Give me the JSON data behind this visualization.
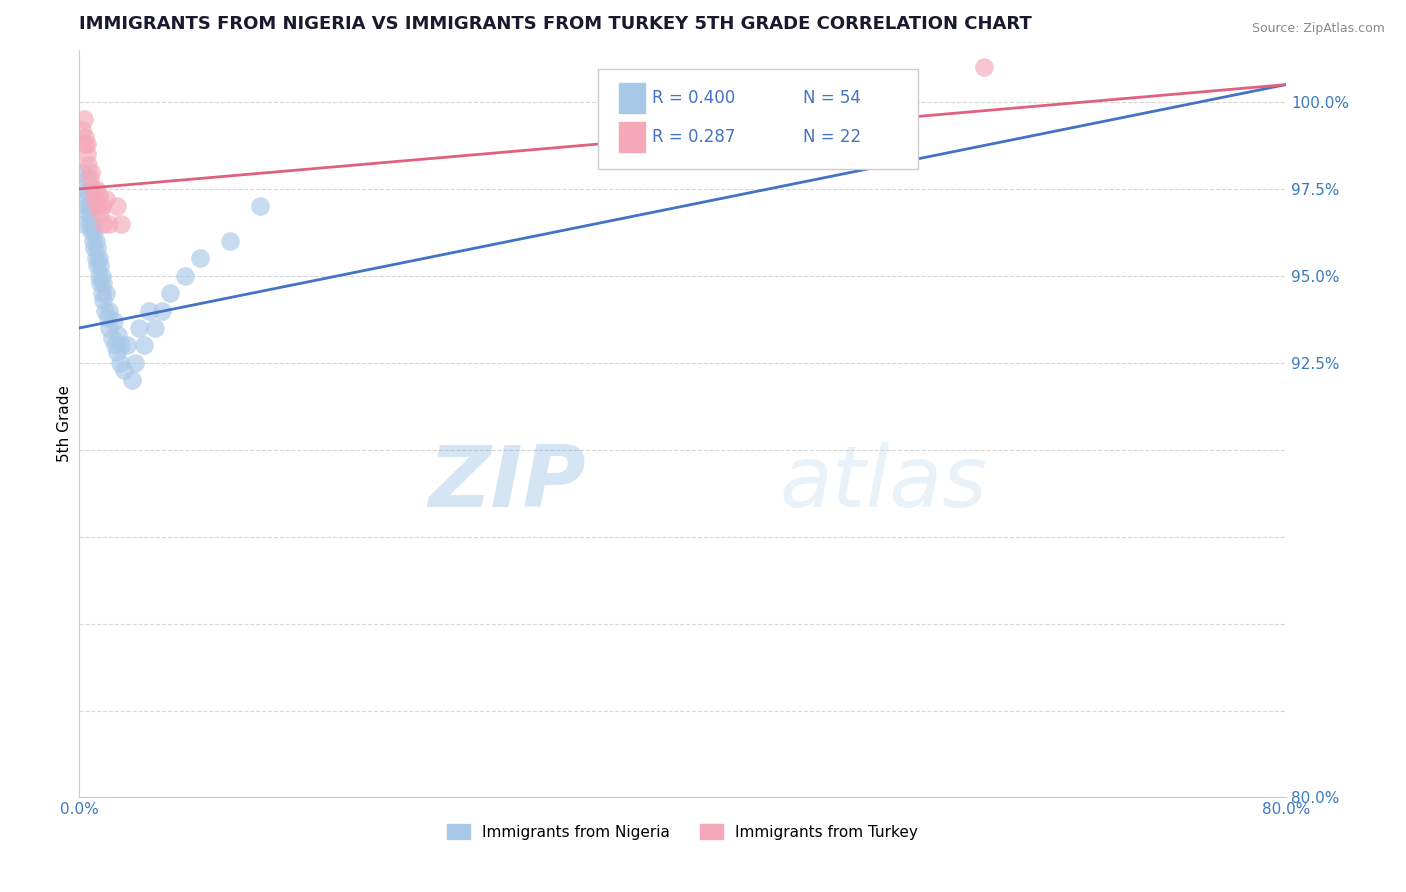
{
  "title": "IMMIGRANTS FROM NIGERIA VS IMMIGRANTS FROM TURKEY 5TH GRADE CORRELATION CHART",
  "source": "Source: ZipAtlas.com",
  "ylabel": "5th Grade",
  "xlim": [
    0.0,
    0.8
  ],
  "ylim": [
    80.0,
    101.5
  ],
  "yticks": [
    80.0,
    82.5,
    85.0,
    87.5,
    90.0,
    92.5,
    95.0,
    97.5,
    100.0
  ],
  "ytick_labels": [
    "80.0%",
    "",
    "",
    "",
    "",
    "92.5%",
    "95.0%",
    "97.5%",
    "100.0%"
  ],
  "xticks": [
    0.0,
    0.1,
    0.2,
    0.3,
    0.4,
    0.5,
    0.6,
    0.7,
    0.8
  ],
  "xtick_labels": [
    "0.0%",
    "",
    "",
    "",
    "",
    "",
    "",
    "",
    "80.0%"
  ],
  "nigeria_color": "#a8c8e8",
  "turkey_color": "#f4a8b8",
  "nigeria_line_color": "#4472c4",
  "turkey_line_color": "#e06080",
  "legend_R_nigeria": "0.400",
  "legend_N_nigeria": "54",
  "legend_R_turkey": "0.287",
  "legend_N_turkey": "22",
  "nigeria_x": [
    0.001,
    0.002,
    0.003,
    0.004,
    0.005,
    0.005,
    0.006,
    0.006,
    0.007,
    0.007,
    0.008,
    0.008,
    0.009,
    0.009,
    0.01,
    0.01,
    0.011,
    0.011,
    0.012,
    0.012,
    0.013,
    0.013,
    0.014,
    0.014,
    0.015,
    0.015,
    0.016,
    0.016,
    0.017,
    0.018,
    0.019,
    0.02,
    0.02,
    0.022,
    0.023,
    0.024,
    0.025,
    0.026,
    0.027,
    0.028,
    0.03,
    0.032,
    0.035,
    0.037,
    0.04,
    0.043,
    0.046,
    0.05,
    0.055,
    0.06,
    0.07,
    0.08,
    0.1,
    0.12
  ],
  "nigeria_y": [
    97.5,
    98.0,
    96.5,
    97.2,
    97.0,
    97.8,
    96.8,
    97.4,
    96.5,
    97.0,
    96.3,
    96.8,
    96.0,
    96.5,
    95.8,
    96.3,
    95.5,
    96.0,
    95.3,
    95.8,
    95.0,
    95.5,
    94.8,
    95.3,
    94.5,
    95.0,
    94.3,
    94.8,
    94.0,
    94.5,
    93.8,
    93.5,
    94.0,
    93.2,
    93.7,
    93.0,
    92.8,
    93.3,
    92.5,
    93.0,
    92.3,
    93.0,
    92.0,
    92.5,
    93.5,
    93.0,
    94.0,
    93.5,
    94.0,
    94.5,
    95.0,
    95.5,
    96.0,
    97.0
  ],
  "nigeria_line_x": [
    0.0,
    0.8
  ],
  "nigeria_line_y": [
    93.5,
    100.5
  ],
  "turkey_x": [
    0.002,
    0.003,
    0.004,
    0.004,
    0.005,
    0.005,
    0.006,
    0.007,
    0.008,
    0.009,
    0.01,
    0.011,
    0.012,
    0.013,
    0.014,
    0.015,
    0.016,
    0.018,
    0.02,
    0.025,
    0.028,
    0.6
  ],
  "turkey_y": [
    99.2,
    99.5,
    98.8,
    99.0,
    98.5,
    98.8,
    98.2,
    97.8,
    98.0,
    97.5,
    97.2,
    97.5,
    97.0,
    97.3,
    96.8,
    97.0,
    96.5,
    97.2,
    96.5,
    97.0,
    96.5,
    101.0
  ],
  "turkey_line_x": [
    0.0,
    0.8
  ],
  "turkey_line_y": [
    97.5,
    100.5
  ],
  "background_color": "#ffffff",
  "grid_color": "#cccccc",
  "title_color": "#1a1a2e",
  "watermark_zip": "ZIP",
  "watermark_atlas": "atlas",
  "watermark_color": "#d0e8f5"
}
